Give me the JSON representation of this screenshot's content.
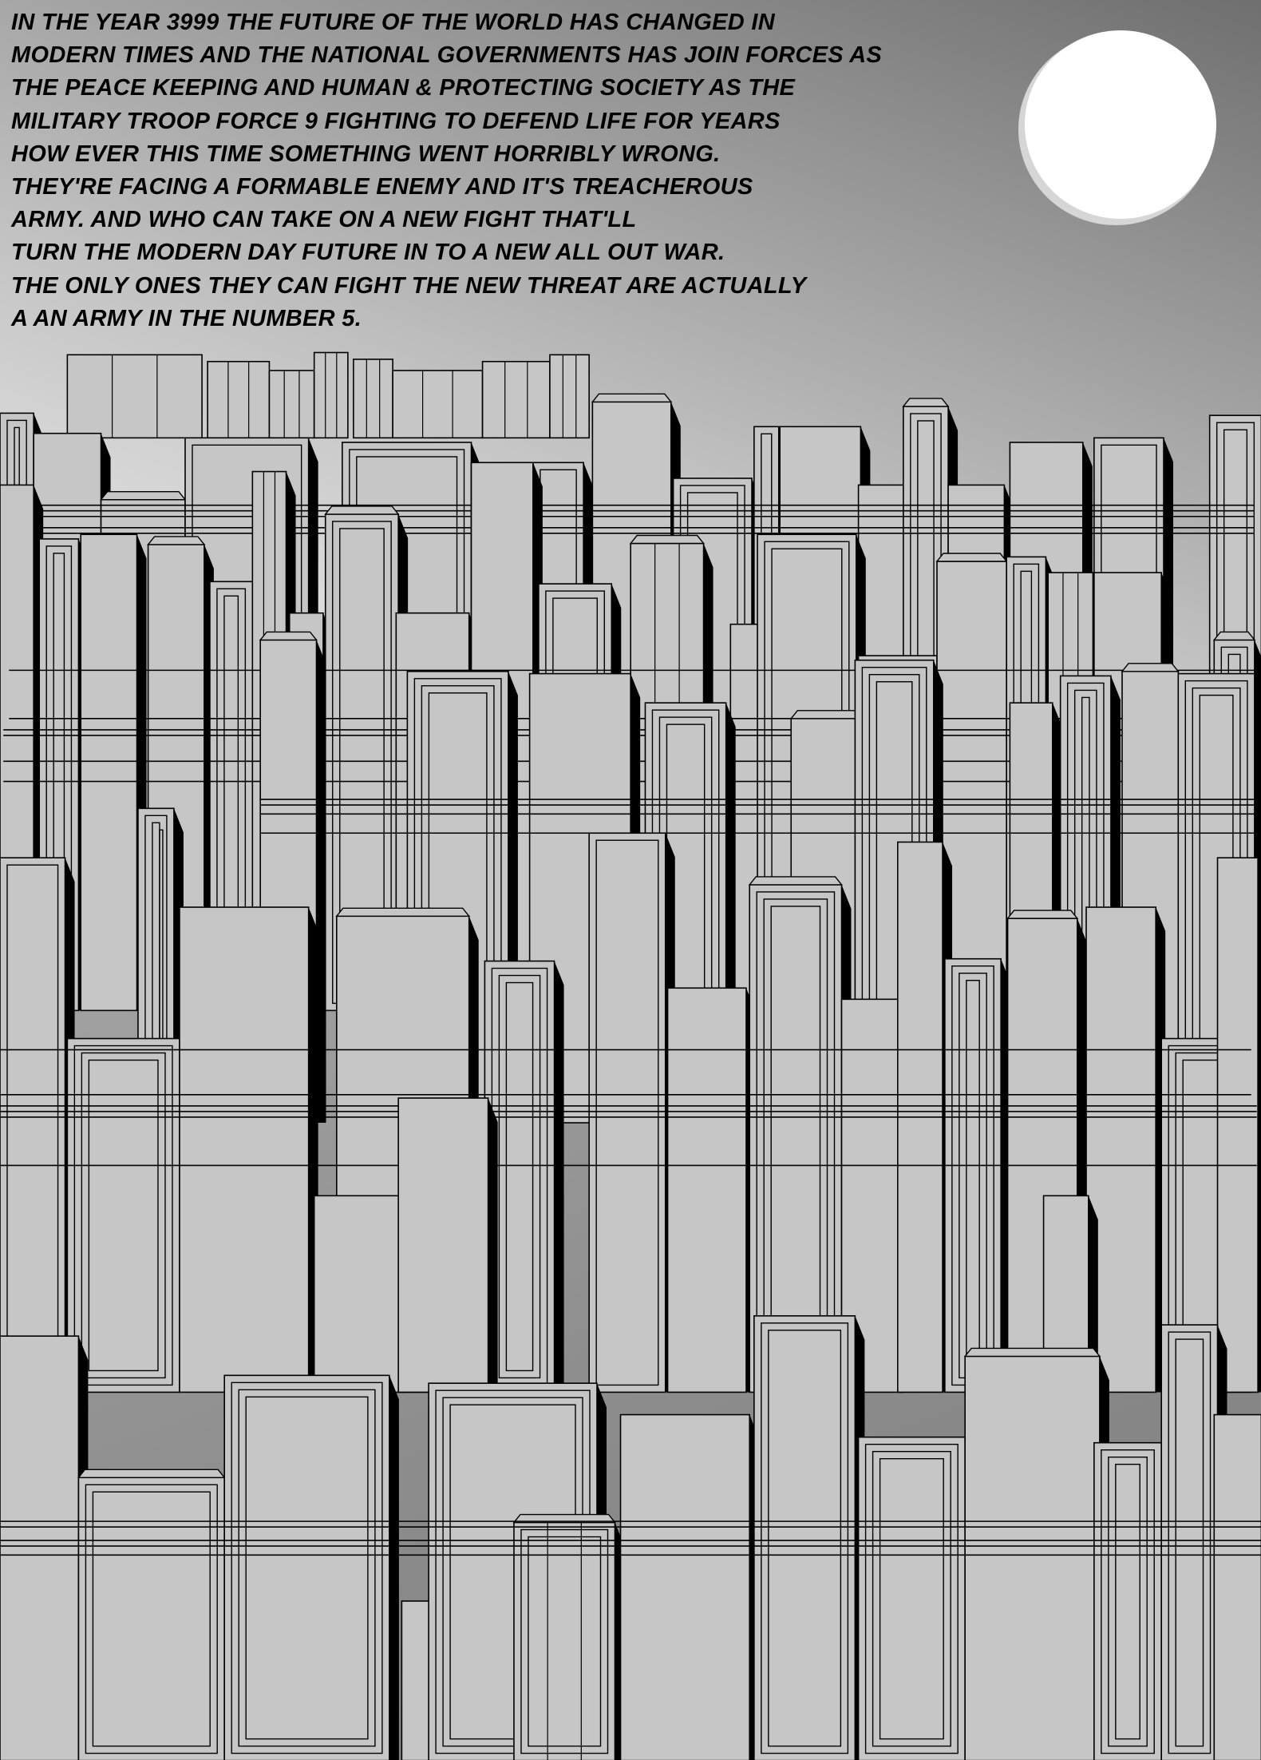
{
  "story": {
    "lines": [
      "IN THE YEAR 3999 THE FUTURE OF THE WORLD HAS CHANGED IN",
      "MODERN TIMES AND THE NATIONAL GOVERNMENTS HAS JOIN FORCES AS",
      "THE PEACE KEEPING AND HUMAN & PROTECTING SOCIETY AS THE",
      "MILITARY TROOP FORCE 9 FIGHTING TO DEFEND LIFE FOR YEARS",
      "HOW  EVER THIS TIME SOMETHING WENT HORRIBLY WRONG.",
      "THEY'RE FACING A FORMABLE ENEMY AND IT'S TREACHEROUS",
      "ARMY. AND WHO CAN TAKE ON A NEW FIGHT THAT'LL",
      "TURN THE MODERN DAY FUTURE IN TO A NEW ALL OUT WAR.",
      "THE ONLY ONES THEY CAN FIGHT THE NEW THREAT ARE ACTUALLY",
      "A AN ARMY IN THE NUMBER 5."
    ]
  },
  "colors": {
    "building": "#c6c6c6",
    "outline": "#000000",
    "moon": "#ffffff",
    "sky_dark": "#6f6f6f",
    "sky_light": "#e6e6e6"
  }
}
